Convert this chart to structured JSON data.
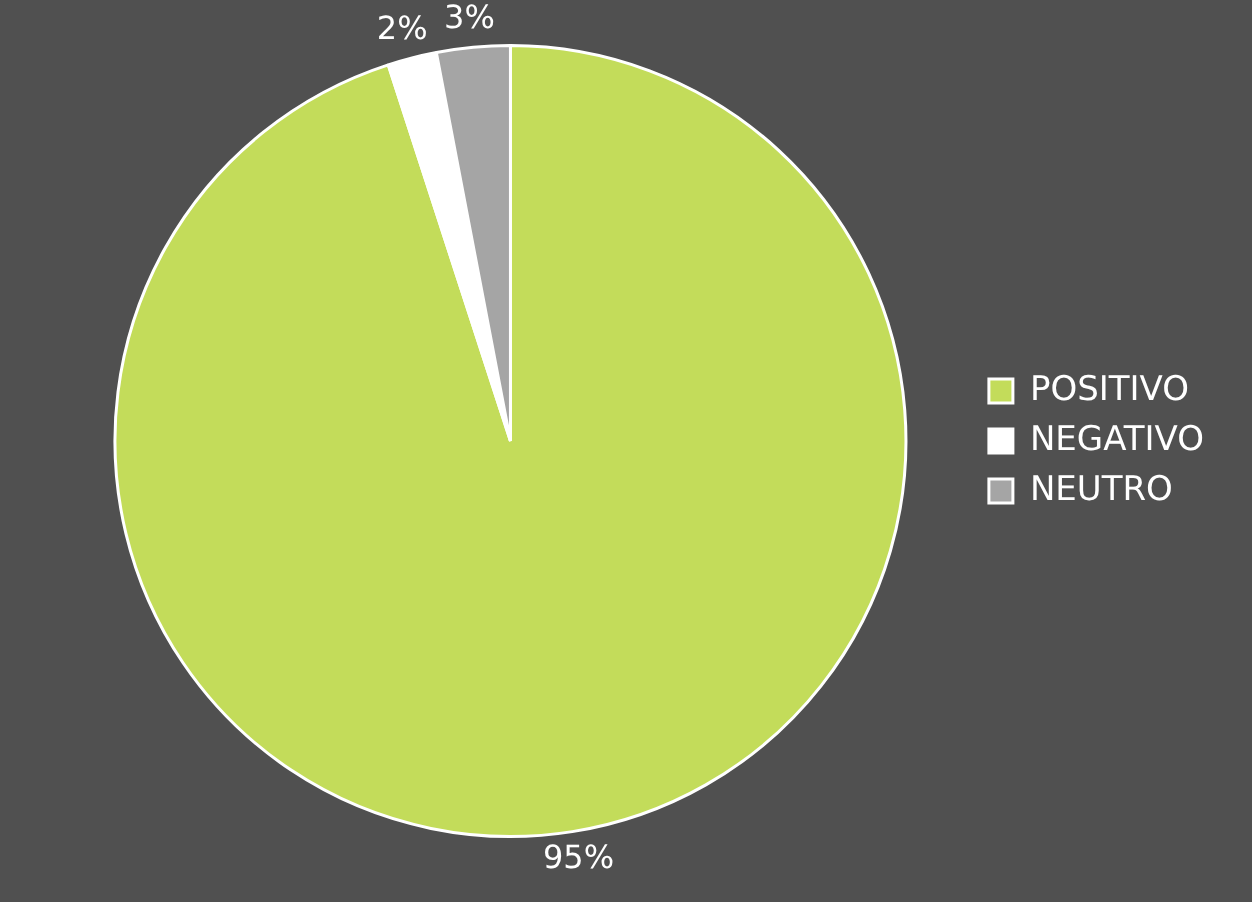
{
  "chart_data": {
    "type": "pie",
    "categories": [
      "POSITIVO",
      "NEGATIVO",
      "NEUTRO"
    ],
    "values": [
      95,
      2,
      3
    ],
    "colors": [
      "#c3dc5a",
      "#ffffff",
      "#a5a5a5"
    ],
    "value_labels": [
      "95%",
      "2%",
      "3%"
    ],
    "legend": "right"
  }
}
